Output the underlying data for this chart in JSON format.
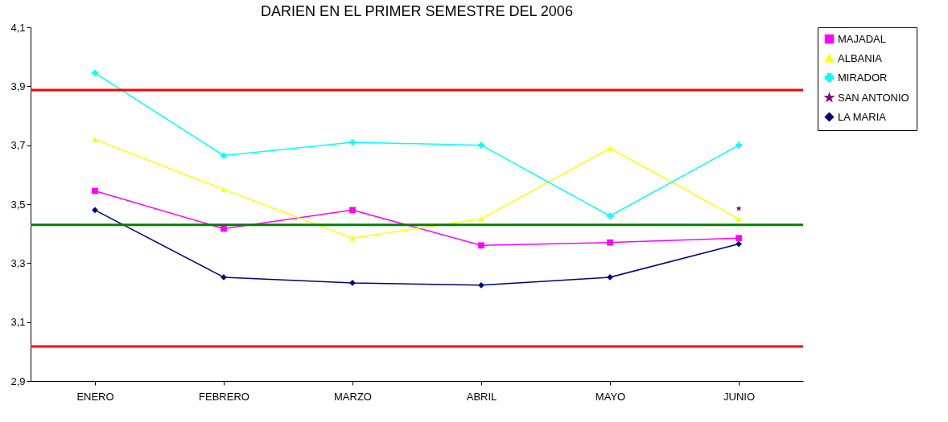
{
  "chart_data": {
    "type": "line",
    "title": "DARIEN EN EL PRIMER SEMESTRE DEL 2006",
    "categories": [
      "ENERO",
      "FEBRERO",
      "MARZO",
      "ABRIL",
      "MAYO",
      "JUNIO"
    ],
    "series": [
      {
        "name": "MAJADAL",
        "color": "#ff00ff",
        "marker": "square",
        "values": [
          3.545,
          3.417,
          3.48,
          3.36,
          3.37,
          3.385
        ]
      },
      {
        "name": "ALBANIA",
        "color": "#ffff00",
        "marker": "triangle",
        "values": [
          3.72,
          3.55,
          3.385,
          3.45,
          3.69,
          3.45
        ]
      },
      {
        "name": "MIRADOR",
        "color": "#00ffff",
        "marker": "cross",
        "values": [
          3.945,
          3.665,
          3.71,
          3.7,
          3.46,
          3.7
        ]
      },
      {
        "name": "SAN ANTONIO",
        "color": "#800080",
        "marker": "star",
        "values": [
          null,
          null,
          null,
          null,
          null,
          3.485
        ]
      },
      {
        "name": "LA MARIA",
        "color": "#000080",
        "marker": "diamond",
        "values": [
          3.48,
          3.252,
          3.233,
          3.225,
          3.252,
          3.365
        ]
      }
    ],
    "ylim": [
      2.9,
      4.1
    ],
    "yticks": [
      {
        "value": 2.9,
        "label": "2,9"
      },
      {
        "value": 3.1,
        "label": "3,1"
      },
      {
        "value": 3.3,
        "label": "3,3"
      },
      {
        "value": 3.5,
        "label": "3,5"
      },
      {
        "value": 3.7,
        "label": "3,7"
      },
      {
        "value": 3.9,
        "label": "3,9"
      },
      {
        "value": 4.1,
        "label": "4,1"
      }
    ],
    "ref_lines": [
      {
        "axis": "y",
        "value": 3.887,
        "color": "#ff0000"
      },
      {
        "axis": "y",
        "value": 3.43,
        "color": "#008000"
      },
      {
        "axis": "y",
        "value": 3.017,
        "color": "#ff0000"
      }
    ],
    "legend": "right",
    "grid": false
  }
}
